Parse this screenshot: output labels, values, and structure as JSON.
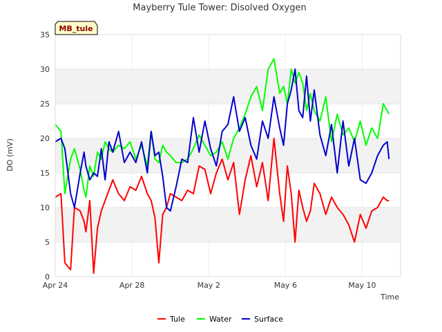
{
  "chart_data": {
    "type": "line",
    "title": "Mayberry Tule Tower: Disolved Oxygen",
    "xlabel": "Time",
    "ylabel": "DO (mV)",
    "badge": "MB_tule",
    "ylim": [
      0,
      35
    ],
    "yticks": [
      0,
      5,
      10,
      15,
      20,
      25,
      30,
      35
    ],
    "xlim_days": [
      0,
      18
    ],
    "xticks": [
      {
        "day": 0,
        "label": "Apr 24"
      },
      {
        "day": 4,
        "label": "Apr 28"
      },
      {
        "day": 8,
        "label": "May 2"
      },
      {
        "day": 12,
        "label": "May 6"
      },
      {
        "day": 16,
        "label": "May 10"
      }
    ],
    "grid": "horizontal bands",
    "legend_position": "bottom",
    "series": [
      {
        "name": "Tule",
        "color": "#ff0000",
        "x": [
          0.0,
          0.3,
          0.5,
          0.8,
          1.0,
          1.3,
          1.5,
          1.6,
          1.8,
          2.0,
          2.2,
          2.4,
          2.6,
          2.8,
          3.0,
          3.3,
          3.6,
          3.9,
          4.2,
          4.5,
          4.8,
          5.0,
          5.2,
          5.4,
          5.6,
          5.8,
          6.0,
          6.3,
          6.6,
          6.9,
          7.2,
          7.5,
          7.8,
          8.1,
          8.4,
          8.7,
          9.0,
          9.3,
          9.6,
          9.9,
          10.2,
          10.5,
          10.8,
          11.1,
          11.4,
          11.7,
          11.9,
          12.1,
          12.3,
          12.5,
          12.7,
          12.9,
          13.1,
          13.3,
          13.5,
          13.8,
          14.1,
          14.4,
          14.7,
          15.0,
          15.3,
          15.6,
          15.9,
          16.2,
          16.5,
          16.8,
          17.1,
          17.3,
          17.4
        ],
        "y": [
          11.5,
          12.0,
          2.0,
          1.0,
          10.0,
          9.5,
          8.0,
          6.5,
          11.0,
          0.5,
          7.0,
          9.5,
          11.0,
          12.5,
          14.0,
          12.0,
          11.0,
          13.0,
          12.5,
          14.5,
          12.0,
          11.0,
          8.5,
          2.0,
          9.0,
          10.0,
          12.0,
          11.5,
          11.0,
          12.5,
          12.0,
          16.0,
          15.5,
          12.0,
          15.0,
          17.0,
          14.0,
          16.5,
          9.0,
          14.0,
          17.5,
          13.0,
          16.5,
          11.0,
          20.0,
          12.0,
          8.0,
          16.0,
          12.0,
          5.0,
          12.5,
          10.0,
          8.0,
          9.5,
          13.5,
          12.0,
          9.0,
          11.5,
          10.0,
          9.0,
          7.5,
          5.0,
          9.0,
          7.0,
          9.5,
          10.0,
          11.5,
          11.0,
          11.0
        ]
      },
      {
        "name": "Water",
        "color": "#00ff00",
        "x": [
          0.0,
          0.3,
          0.5,
          0.8,
          1.0,
          1.3,
          1.5,
          1.6,
          1.8,
          2.0,
          2.2,
          2.4,
          2.6,
          2.8,
          3.0,
          3.3,
          3.6,
          3.9,
          4.2,
          4.5,
          4.8,
          5.0,
          5.2,
          5.4,
          5.6,
          5.8,
          6.0,
          6.3,
          6.6,
          6.9,
          7.2,
          7.5,
          7.8,
          8.1,
          8.4,
          8.7,
          9.0,
          9.3,
          9.6,
          9.9,
          10.2,
          10.5,
          10.8,
          11.1,
          11.4,
          11.7,
          11.9,
          12.1,
          12.3,
          12.5,
          12.7,
          12.9,
          13.1,
          13.3,
          13.5,
          13.8,
          14.1,
          14.4,
          14.7,
          15.0,
          15.3,
          15.6,
          15.9,
          16.2,
          16.5,
          16.8,
          17.1,
          17.3,
          17.4
        ],
        "y": [
          22.0,
          21.0,
          12.0,
          17.0,
          18.5,
          15.5,
          12.5,
          11.5,
          16.0,
          14.5,
          18.0,
          17.0,
          19.5,
          18.5,
          18.0,
          19.0,
          18.5,
          19.5,
          17.0,
          19.0,
          16.0,
          21.0,
          17.0,
          16.5,
          19.0,
          18.0,
          17.5,
          16.5,
          16.5,
          17.0,
          18.5,
          20.5,
          19.0,
          17.5,
          18.0,
          19.5,
          17.0,
          20.0,
          21.5,
          23.5,
          26.0,
          27.5,
          24.0,
          30.0,
          31.5,
          26.5,
          27.5,
          25.0,
          30.0,
          28.0,
          29.5,
          28.0,
          24.0,
          26.5,
          24.0,
          22.5,
          26.0,
          19.5,
          23.5,
          20.5,
          21.5,
          19.5,
          22.5,
          19.0,
          21.5,
          20.0,
          25.0,
          24.0,
          23.5
        ]
      },
      {
        "name": "Surface",
        "color": "#0000cc",
        "x": [
          0.0,
          0.3,
          0.5,
          0.8,
          1.0,
          1.3,
          1.5,
          1.6,
          1.8,
          2.0,
          2.2,
          2.4,
          2.6,
          2.8,
          3.0,
          3.3,
          3.6,
          3.9,
          4.2,
          4.5,
          4.8,
          5.0,
          5.2,
          5.4,
          5.6,
          5.8,
          6.0,
          6.3,
          6.6,
          6.9,
          7.2,
          7.5,
          7.8,
          8.1,
          8.4,
          8.7,
          9.0,
          9.3,
          9.6,
          9.9,
          10.2,
          10.5,
          10.8,
          11.1,
          11.4,
          11.7,
          11.9,
          12.1,
          12.3,
          12.5,
          12.7,
          12.9,
          13.1,
          13.3,
          13.5,
          13.8,
          14.1,
          14.4,
          14.7,
          15.0,
          15.3,
          15.6,
          15.9,
          16.2,
          16.5,
          16.8,
          17.1,
          17.3,
          17.4
        ],
        "y": [
          19.5,
          20.0,
          18.5,
          12.0,
          10.0,
          15.0,
          18.0,
          16.0,
          14.0,
          15.0,
          14.5,
          18.5,
          14.0,
          19.5,
          18.0,
          21.0,
          16.5,
          18.0,
          16.5,
          19.5,
          15.0,
          21.0,
          17.5,
          18.0,
          14.5,
          10.0,
          9.5,
          13.0,
          17.0,
          16.5,
          23.0,
          18.0,
          22.5,
          18.5,
          16.0,
          21.0,
          22.0,
          26.0,
          21.0,
          23.0,
          19.0,
          17.0,
          22.5,
          20.0,
          26.0,
          21.5,
          19.0,
          25.0,
          27.0,
          30.0,
          24.0,
          23.0,
          29.0,
          22.5,
          27.0,
          20.5,
          17.5,
          22.0,
          15.0,
          22.5,
          16.0,
          20.0,
          14.0,
          13.5,
          15.0,
          17.5,
          19.0,
          19.5,
          17.0
        ]
      }
    ]
  }
}
